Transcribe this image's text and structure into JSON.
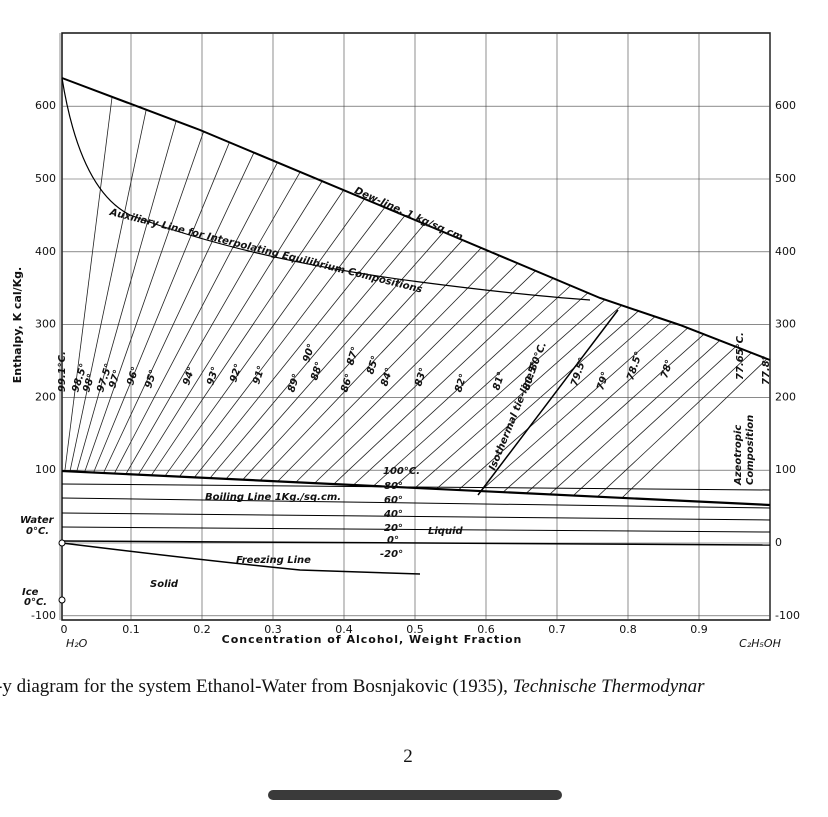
{
  "figure": {
    "y_axis_label": "Enthalpy, K cal/Kg.",
    "y_ticks_left": [
      600,
      500,
      400,
      300,
      200,
      100,
      -100
    ],
    "y_ticks_right": [
      600,
      500,
      400,
      300,
      200,
      100,
      0,
      -100
    ],
    "x_ticks": [
      0,
      0.1,
      0.2,
      0.3,
      0.4,
      0.5,
      0.6,
      0.7,
      0.8,
      0.9
    ],
    "x_left_label": "H₂O",
    "x_right_label": "C₂H₅OH",
    "x_axis_label": "Concentration of Alcohol, Weight Fraction",
    "annotations": {
      "dew_line": "Dew-line, 1 kg/sq cm.",
      "auxiliary_line": "Auxiliary Line for Interpolating Equilibrium Compositions",
      "boiling_line": "Boiling Line 1Kg./sq.cm.",
      "freezing_line": "Freezing Line",
      "solid": "Solid",
      "liquid": "Liquid",
      "water": "Water",
      "water_temp": "0°C.",
      "ice": "Ice",
      "ice_temp": "0°C.",
      "isothermal": "Isothermal tie-line 80°C.",
      "azeotropic": "Azeotropic",
      "composition": "Composition",
      "azeo_temp": "77.65°C.",
      "end_temp": "77.8°"
    },
    "isotherm_labels": [
      "100°C.",
      "80°",
      "60°",
      "40°",
      "20°",
      "0°",
      "-20°"
    ],
    "tie_line_labels": [
      "99.1°C.",
      "98.5°",
      "98°",
      "97.5°",
      "97°",
      "96°",
      "95°",
      "94°",
      "93°",
      "92°",
      "91°",
      "90°",
      "89°",
      "88°",
      "87°",
      "86°",
      "85°",
      "84°",
      "83°",
      "82°",
      "81°",
      "80.5°",
      "79.5°",
      "79°",
      "78.5°",
      "78°"
    ]
  },
  "caption": {
    "text": "-y diagram for the system Ethanol-Water from Bosnjakovic (1935), ",
    "source": "Technische Thermodynar"
  },
  "page_number": "2"
}
